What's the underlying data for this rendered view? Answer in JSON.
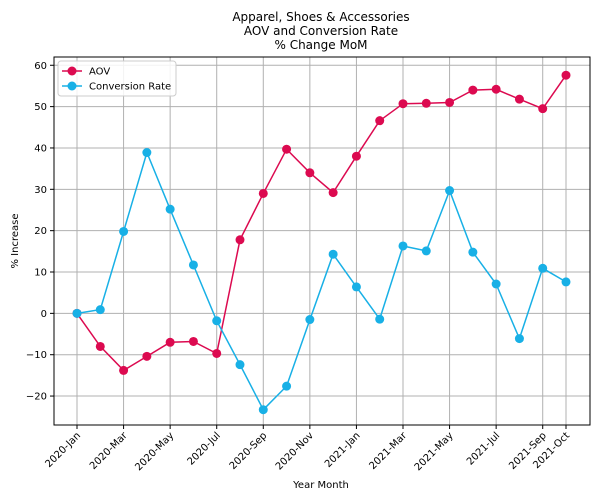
{
  "chart_data": {
    "type": "line",
    "title": [
      "Apparel, Shoes & Accessories",
      "AOV and Conversion Rate",
      "% Change MoM"
    ],
    "xlabel": "Year Month",
    "ylabel": "% Increase",
    "ylim": [
      -27,
      62
    ],
    "yticks": [
      -20,
      -10,
      0,
      10,
      20,
      30,
      40,
      50,
      60
    ],
    "ytick_labels": [
      "−20",
      "−10",
      "0",
      "10",
      "20",
      "30",
      "40",
      "50",
      "60"
    ],
    "x": [
      "2020-Jan",
      "2020-Feb",
      "2020-Mar",
      "2020-Apr",
      "2020-May",
      "2020-Jun",
      "2020-Jul",
      "2020-Aug",
      "2020-Sep",
      "2020-Oct",
      "2020-Nov",
      "2020-Dec",
      "2021-Jan",
      "2021-Feb",
      "2021-Mar",
      "2021-Apr",
      "2021-May",
      "2021-Jun",
      "2021-Jul",
      "2021-Aug",
      "2021-Sep",
      "2021-Oct"
    ],
    "xtick_labels": [
      "2020-Jan",
      "2020-Mar",
      "2020-May",
      "2020-Jul",
      "2020-Sep",
      "2020-Nov",
      "2021-Jan",
      "2021-Mar",
      "2021-May",
      "2021-Jul",
      "2021-Sep",
      "2021-Oct"
    ],
    "grid": true,
    "legend_position": "top-left",
    "series": [
      {
        "name": "AOV",
        "color": "#dc0a50",
        "values": [
          0,
          -8,
          -13.8,
          -10.4,
          -7,
          -6.8,
          -9.7,
          17.8,
          29,
          39.7,
          34,
          29.2,
          38,
          46.6,
          50.7,
          50.8,
          51,
          54,
          54.2,
          51.8,
          49.5,
          57.6
        ]
      },
      {
        "name": "Conversion Rate",
        "color": "#18b0e6",
        "values": [
          0,
          0.9,
          19.8,
          38.9,
          25.2,
          11.7,
          -1.8,
          -12.4,
          -23.3,
          -17.6,
          -1.5,
          14.3,
          6.4,
          -1.4,
          16.3,
          15.1,
          29.7,
          14.8,
          7.1,
          -6.1,
          10.9,
          7.6
        ]
      }
    ]
  }
}
